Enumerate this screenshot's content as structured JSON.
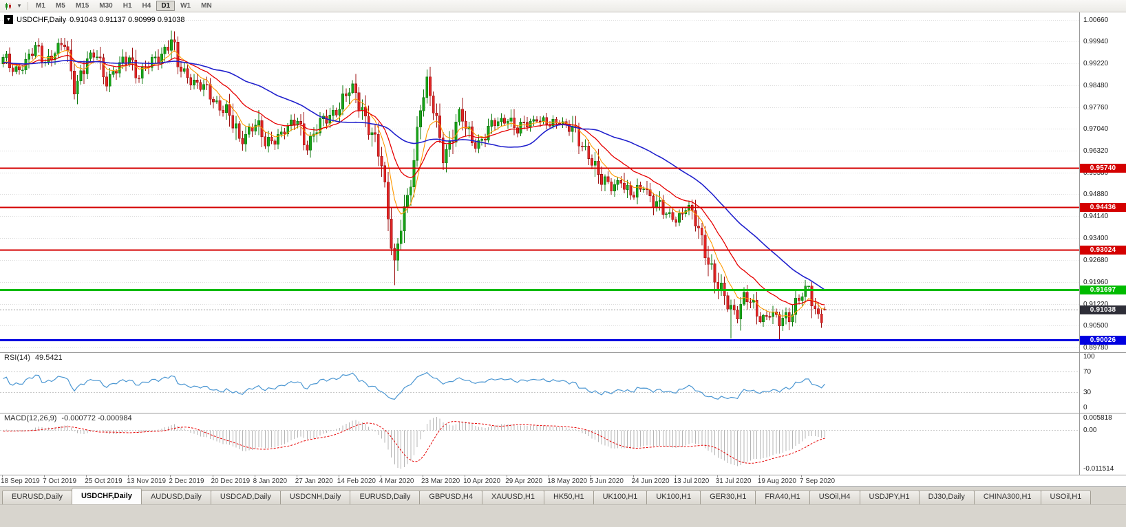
{
  "icons": {
    "symbol_dropdown": "▼",
    "toolbar_caret": "▾"
  },
  "toolbar": {
    "timeframes": [
      {
        "label": "M1",
        "active": false
      },
      {
        "label": "M5",
        "active": false
      },
      {
        "label": "M15",
        "active": false
      },
      {
        "label": "M30",
        "active": false
      },
      {
        "label": "H1",
        "active": false
      },
      {
        "label": "H4",
        "active": false
      },
      {
        "label": "D1",
        "active": true
      },
      {
        "label": "W1",
        "active": false
      },
      {
        "label": "MN",
        "active": false
      }
    ]
  },
  "chart_data": {
    "type": "candlestick",
    "symbol": "USDCHF",
    "timeframe": "Daily",
    "title": {
      "symbol": "USDCHF,Daily",
      "ohlc": "0.91043 0.91137 0.90999 0.91038"
    },
    "price_scale": {
      "max": 1.009,
      "min": 0.8962
    },
    "price_axis": [
      "1.00660",
      "0.99940",
      "0.99220",
      "0.98480",
      "0.97760",
      "0.97040",
      "0.96320",
      "0.95580",
      "0.94880",
      "0.94140",
      "0.93400",
      "0.92680",
      "0.91960",
      "0.91220",
      "0.90500",
      "0.89780"
    ],
    "current_price": {
      "label": "0.91038",
      "value": 0.91038,
      "bg": "#2e2e38"
    },
    "hlines": [
      {
        "label": "0.95740",
        "value": 0.9574,
        "color": "#d40000",
        "width": 2
      },
      {
        "label": "0.94436",
        "value": 0.94436,
        "color": "#d40000",
        "width": 2
      },
      {
        "label": "0.93024",
        "value": 0.93024,
        "color": "#d40000",
        "width": 2
      },
      {
        "label": "0.91697",
        "value": 0.91697,
        "color": "#00bb00",
        "width": 3
      },
      {
        "label": "0.90026",
        "value": 0.90026,
        "color": "#0000e0",
        "width": 3
      }
    ],
    "colors": {
      "grid": "#dcdcdc",
      "current_line": "#8d8d8d",
      "up": {
        "fill": "#19a319",
        "stroke": "#0c7a0c"
      },
      "down": {
        "fill": "#e02626",
        "stroke": "#9d1010"
      }
    },
    "mas": [
      {
        "key": "ma-fast",
        "method": "ema",
        "period": 8,
        "color": "#ff9900",
        "width": 1.1
      },
      {
        "key": "ma-mid",
        "method": "ema",
        "period": 21,
        "color": "#e60000",
        "width": 1.3
      },
      {
        "key": "ma-slow",
        "method": "sma",
        "period": 45,
        "color": "#2121cd",
        "width": 1.6
      }
    ],
    "candles": {
      "count": 255,
      "pre": 60,
      "waypoints": [
        [
          -60,
          0.989
        ],
        [
          -45,
          0.9955
        ],
        [
          -30,
          0.9905
        ],
        [
          -15,
          0.994
        ],
        [
          -5,
          0.99
        ],
        [
          0,
          0.9935
        ],
        [
          3,
          0.9898
        ],
        [
          7,
          0.9922
        ],
        [
          10,
          0.9972
        ],
        [
          13,
          0.993
        ],
        [
          16,
          0.9962
        ],
        [
          19,
          0.9983
        ],
        [
          22,
          0.9848
        ],
        [
          26,
          0.993
        ],
        [
          29,
          0.9948
        ],
        [
          32,
          0.9868
        ],
        [
          36,
          0.9906
        ],
        [
          39,
          0.9944
        ],
        [
          42,
          0.9882
        ],
        [
          46,
          0.992
        ],
        [
          50,
          0.9972
        ],
        [
          52,
          0.9998
        ],
        [
          54,
          0.9906
        ],
        [
          58,
          0.9872
        ],
        [
          62,
          0.9836
        ],
        [
          65,
          0.9798
        ],
        [
          69,
          0.9766
        ],
        [
          73,
          0.9662
        ],
        [
          76,
          0.9706
        ],
        [
          78,
          0.972
        ],
        [
          81,
          0.9648
        ],
        [
          85,
          0.9686
        ],
        [
          89,
          0.9712
        ],
        [
          91,
          0.973
        ],
        [
          94,
          0.9648
        ],
        [
          97,
          0.97
        ],
        [
          101,
          0.9752
        ],
        [
          104,
          0.978
        ],
        [
          108,
          0.984
        ],
        [
          111,
          0.9778
        ],
        [
          114,
          0.9682
        ],
        [
          117,
          0.958
        ],
        [
          119,
          0.9424
        ],
        [
          121,
          0.9262
        ],
        [
          123,
          0.9382
        ],
        [
          125,
          0.9452
        ],
        [
          127,
          0.96
        ],
        [
          129,
          0.9798
        ],
        [
          131,
          0.9862
        ],
        [
          133,
          0.976
        ],
        [
          136,
          0.9612
        ],
        [
          138,
          0.9662
        ],
        [
          141,
          0.9758
        ],
        [
          143,
          0.97
        ],
        [
          146,
          0.9652
        ],
        [
          149,
          0.9682
        ],
        [
          152,
          0.972
        ],
        [
          156,
          0.9742
        ],
        [
          159,
          0.9692
        ],
        [
          162,
          0.9722
        ],
        [
          165,
          0.974
        ],
        [
          169,
          0.9712
        ],
        [
          172,
          0.973
        ],
        [
          175,
          0.9718
        ],
        [
          178,
          0.9652
        ],
        [
          182,
          0.9612
        ],
        [
          185,
          0.9532
        ],
        [
          188,
          0.9502
        ],
        [
          191,
          0.954
        ],
        [
          193,
          0.9496
        ],
        [
          195,
          0.9476
        ],
        [
          198,
          0.9512
        ],
        [
          201,
          0.9472
        ],
        [
          204,
          0.9422
        ],
        [
          208,
          0.9406
        ],
        [
          211,
          0.944
        ],
        [
          214,
          0.9392
        ],
        [
          217,
          0.9312
        ],
        [
          220,
          0.9202
        ],
        [
          221,
          0.9172
        ],
        [
          224,
          0.9122
        ],
        [
          227,
          0.9096
        ],
        [
          229,
          0.9148
        ],
        [
          232,
          0.9106
        ],
        [
          234,
          0.9076
        ],
        [
          237,
          0.9092
        ],
        [
          240,
          0.9052
        ],
        [
          243,
          0.9092
        ],
        [
          245,
          0.9132
        ],
        [
          247,
          0.9152
        ],
        [
          249,
          0.9168
        ],
        [
          251,
          0.9096
        ],
        [
          253,
          0.9082
        ],
        [
          254,
          0.9104
        ]
      ],
      "overrides": {
        "121": {
          "low": 0.9185
        },
        "131": {
          "high": 0.99
        },
        "225": {
          "low": 0.9008
        },
        "240": {
          "low": 0.9002
        },
        "249": {
          "high": 0.9172
        },
        "254": {
          "open": 0.91043,
          "high": 0.91137,
          "low": 0.90999,
          "close": 0.91038
        }
      }
    }
  },
  "rsi": {
    "title": "RSI(14)",
    "value": "49.5421",
    "color": "#4a96d2",
    "levels": [
      {
        "label": "100",
        "line": false
      },
      {
        "label": "70",
        "line": true
      },
      {
        "label": "30",
        "line": true
      },
      {
        "label": "0",
        "line": false
      }
    ]
  },
  "macd": {
    "title": "MACD(12,26,9)",
    "values": "-0.000772 -0.000984",
    "bar_color": "#b4b4b4",
    "signal_color": "#e60000",
    "scale": {
      "top": "0.005818",
      "zero": "0.00",
      "bottom": "-0.011514"
    }
  },
  "date_axis": {
    "labels": [
      "18 Sep 2019",
      "7 Oct 2019",
      "25 Oct 2019",
      "13 Nov 2019",
      "2 Dec 2019",
      "20 Dec 2019",
      "8 Jan 2020",
      "27 Jan 2020",
      "14 Feb 2020",
      "4 Mar 2020",
      "23 Mar 2020",
      "10 Apr 2020",
      "29 Apr 2020",
      "18 May 2020",
      "5 Jun 2020",
      "24 Jun 2020",
      "13 Jul 2020",
      "31 Jul 2020",
      "19 Aug 2020",
      "7 Sep 2020"
    ]
  },
  "tabs": [
    {
      "label": "EURUSD,Daily",
      "active": false
    },
    {
      "label": "USDCHF,Daily",
      "active": true
    },
    {
      "label": "AUDUSD,Daily",
      "active": false
    },
    {
      "label": "USDCAD,Daily",
      "active": false
    },
    {
      "label": "USDCNH,Daily",
      "active": false
    },
    {
      "label": "EURUSD,Daily",
      "active": false
    },
    {
      "label": "GBPUSD,H4",
      "active": false
    },
    {
      "label": "XAUUSD,H1",
      "active": false
    },
    {
      "label": "HK50,H1",
      "active": false
    },
    {
      "label": "UK100,H1",
      "active": false
    },
    {
      "label": "UK100,H1",
      "active": false
    },
    {
      "label": "GER30,H1",
      "active": false
    },
    {
      "label": "FRA40,H1",
      "active": false
    },
    {
      "label": "USOil,H4",
      "active": false
    },
    {
      "label": "USDJPY,H1",
      "active": false
    },
    {
      "label": "DJ30,Daily",
      "active": false
    },
    {
      "label": "CHINA300,H1",
      "active": false
    },
    {
      "label": "USOil,H1",
      "active": false
    }
  ]
}
